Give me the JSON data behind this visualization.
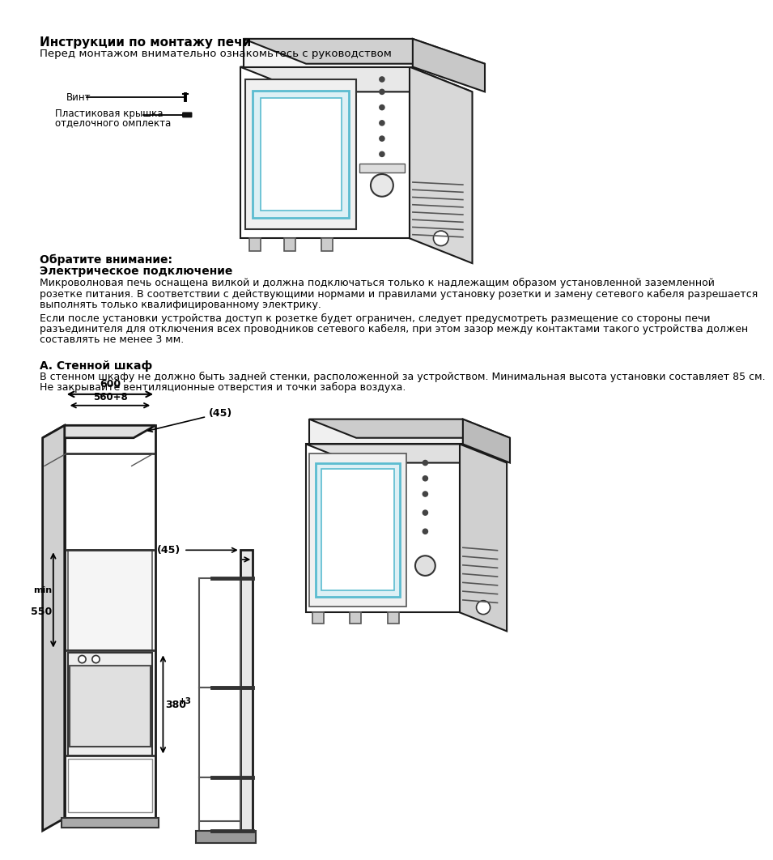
{
  "bg_color": "#ffffff",
  "title1_bold": "Инструкции по монтажу печи",
  "subtitle1": "Перед монтажом внимательно ознакомьтесь с руководством",
  "label_vint": "Винт",
  "label_plastic": "Пластиковая крышка\nотделочного омплекта",
  "section2_bold1": "Обратите внимание:",
  "section2_bold2": "Электрическое подключение",
  "section2_text1": "Микроволновая печь оснащена вилкой и должна подключаться только к надлежащим образом установленной заземленной",
  "section2_text1b": "розетке питания. В соответствии с действующими нормами и правилами установку розетки и замену сетевого кабеля разрешается",
  "section2_text1c": "выполнять только квалифицированному электрику.",
  "section2_text2": "Если после установки устройства доступ к розетке будет ограничен, следует предусмотреть размещение со стороны печи",
  "section2_text2b": "разъединителя для отключения всех проводников сетевого кабеля, при этом зазор между контактами такого устройства должен",
  "section2_text2c": "составлять не менее 3 мм.",
  "section3_bold": "А. Стенной шкаф",
  "section3_text1": "В стенном шкафу не должно быть задней стенки, расположенной за устройством. Минимальная высота установки составляет 85 см.",
  "section3_text2": "Не закрывайте вентиляционные отверстия и точки забора воздуха.",
  "dim_600": "600",
  "dim_560": "560+8",
  "dim_45_top": "(45)",
  "dim_min": "min",
  "dim_550": "550",
  "dim_380": "380",
  "dim_3": "+3",
  "dim_45_bot": "(45)"
}
